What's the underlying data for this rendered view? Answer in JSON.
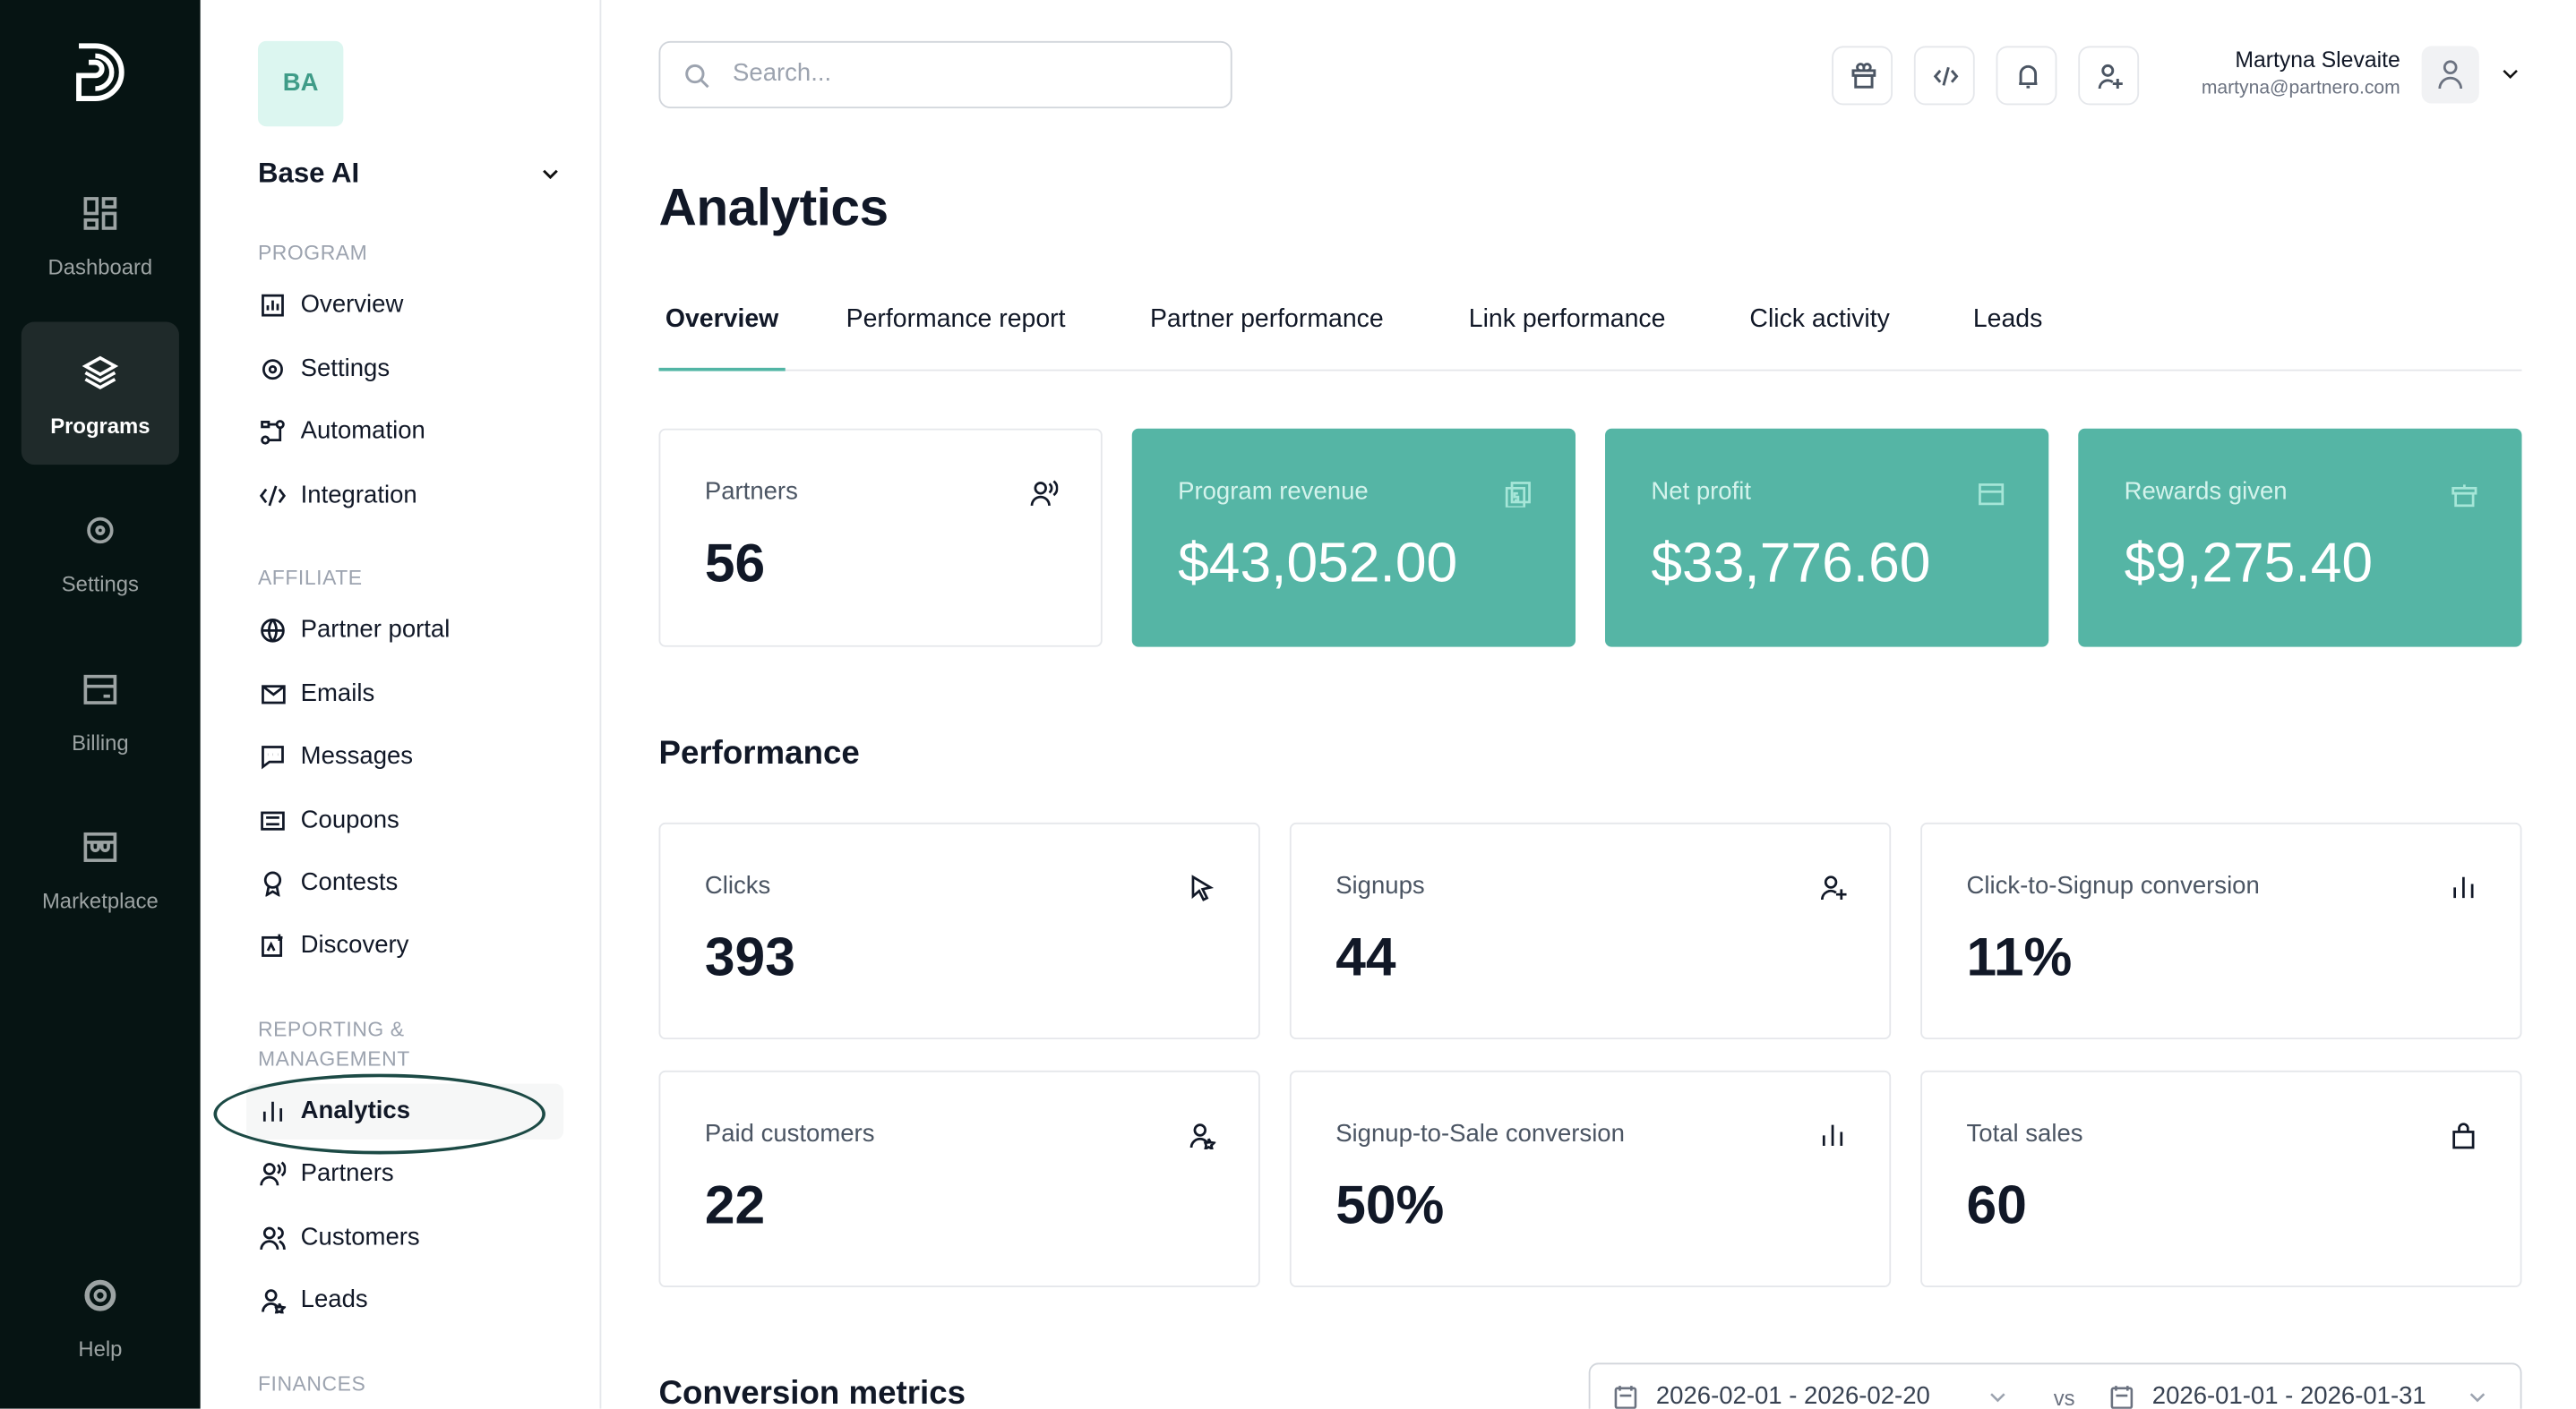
{
  "rail": {
    "items": [
      {
        "label": "Dashboard",
        "icon": "dashboard-icon"
      },
      {
        "label": "Programs",
        "icon": "layers-icon",
        "active": true
      },
      {
        "label": "Settings",
        "icon": "gear-icon"
      },
      {
        "label": "Billing",
        "icon": "credit-card-icon"
      },
      {
        "label": "Marketplace",
        "icon": "store-icon"
      }
    ],
    "help": "Help"
  },
  "program": {
    "initials": "BA",
    "name": "Base AI"
  },
  "sidebar": {
    "sections": [
      {
        "title": "PROGRAM",
        "items": [
          "Overview",
          "Settings",
          "Automation",
          "Integration"
        ]
      },
      {
        "title": "AFFILIATE",
        "items": [
          "Partner portal",
          "Emails",
          "Messages",
          "Coupons",
          "Contests",
          "Discovery"
        ]
      },
      {
        "title": "REPORTING & MANAGEMENT",
        "items": [
          "Analytics",
          "Partners",
          "Customers",
          "Leads"
        ]
      },
      {
        "title": "FINANCES",
        "items": []
      }
    ],
    "active": "Analytics"
  },
  "search": {
    "placeholder": "Search..."
  },
  "user": {
    "name": "Martyna Slevaite",
    "email": "martyna@partnero.com"
  },
  "page": {
    "title": "Analytics"
  },
  "tabs": [
    "Overview",
    "Performance report",
    "Partner performance",
    "Link performance",
    "Click activity",
    "Leads"
  ],
  "summary": [
    {
      "label": "Partners",
      "value": "56",
      "icon": "partners-icon"
    },
    {
      "label": "Program revenue",
      "value": "$43,052.00",
      "icon": "money-icon"
    },
    {
      "label": "Net profit",
      "value": "$33,776.60",
      "icon": "wallet-icon"
    },
    {
      "label": "Rewards given",
      "value": "$9,275.40",
      "icon": "gift-icon"
    }
  ],
  "performance": {
    "title": "Performance",
    "cards": [
      {
        "label": "Clicks",
        "value": "393",
        "icon": "cursor-icon"
      },
      {
        "label": "Signups",
        "value": "44",
        "icon": "user-plus-icon"
      },
      {
        "label": "Click-to-Signup conversion",
        "value": "11%",
        "icon": "bar-chart-icon"
      },
      {
        "label": "Paid customers",
        "value": "22",
        "icon": "user-star-icon"
      },
      {
        "label": "Signup-to-Sale conversion",
        "value": "50%",
        "icon": "bar-chart-icon"
      },
      {
        "label": "Total sales",
        "value": "60",
        "icon": "shopping-bag-icon"
      }
    ]
  },
  "conversion": {
    "title": "Conversion metrics",
    "range": "2026-02-01 - 2026-02-20",
    "vs": "vs",
    "compare": "2026-01-01 - 2026-01-31"
  },
  "colors": {
    "accent": "#55b5a5",
    "rail": "#061413"
  }
}
